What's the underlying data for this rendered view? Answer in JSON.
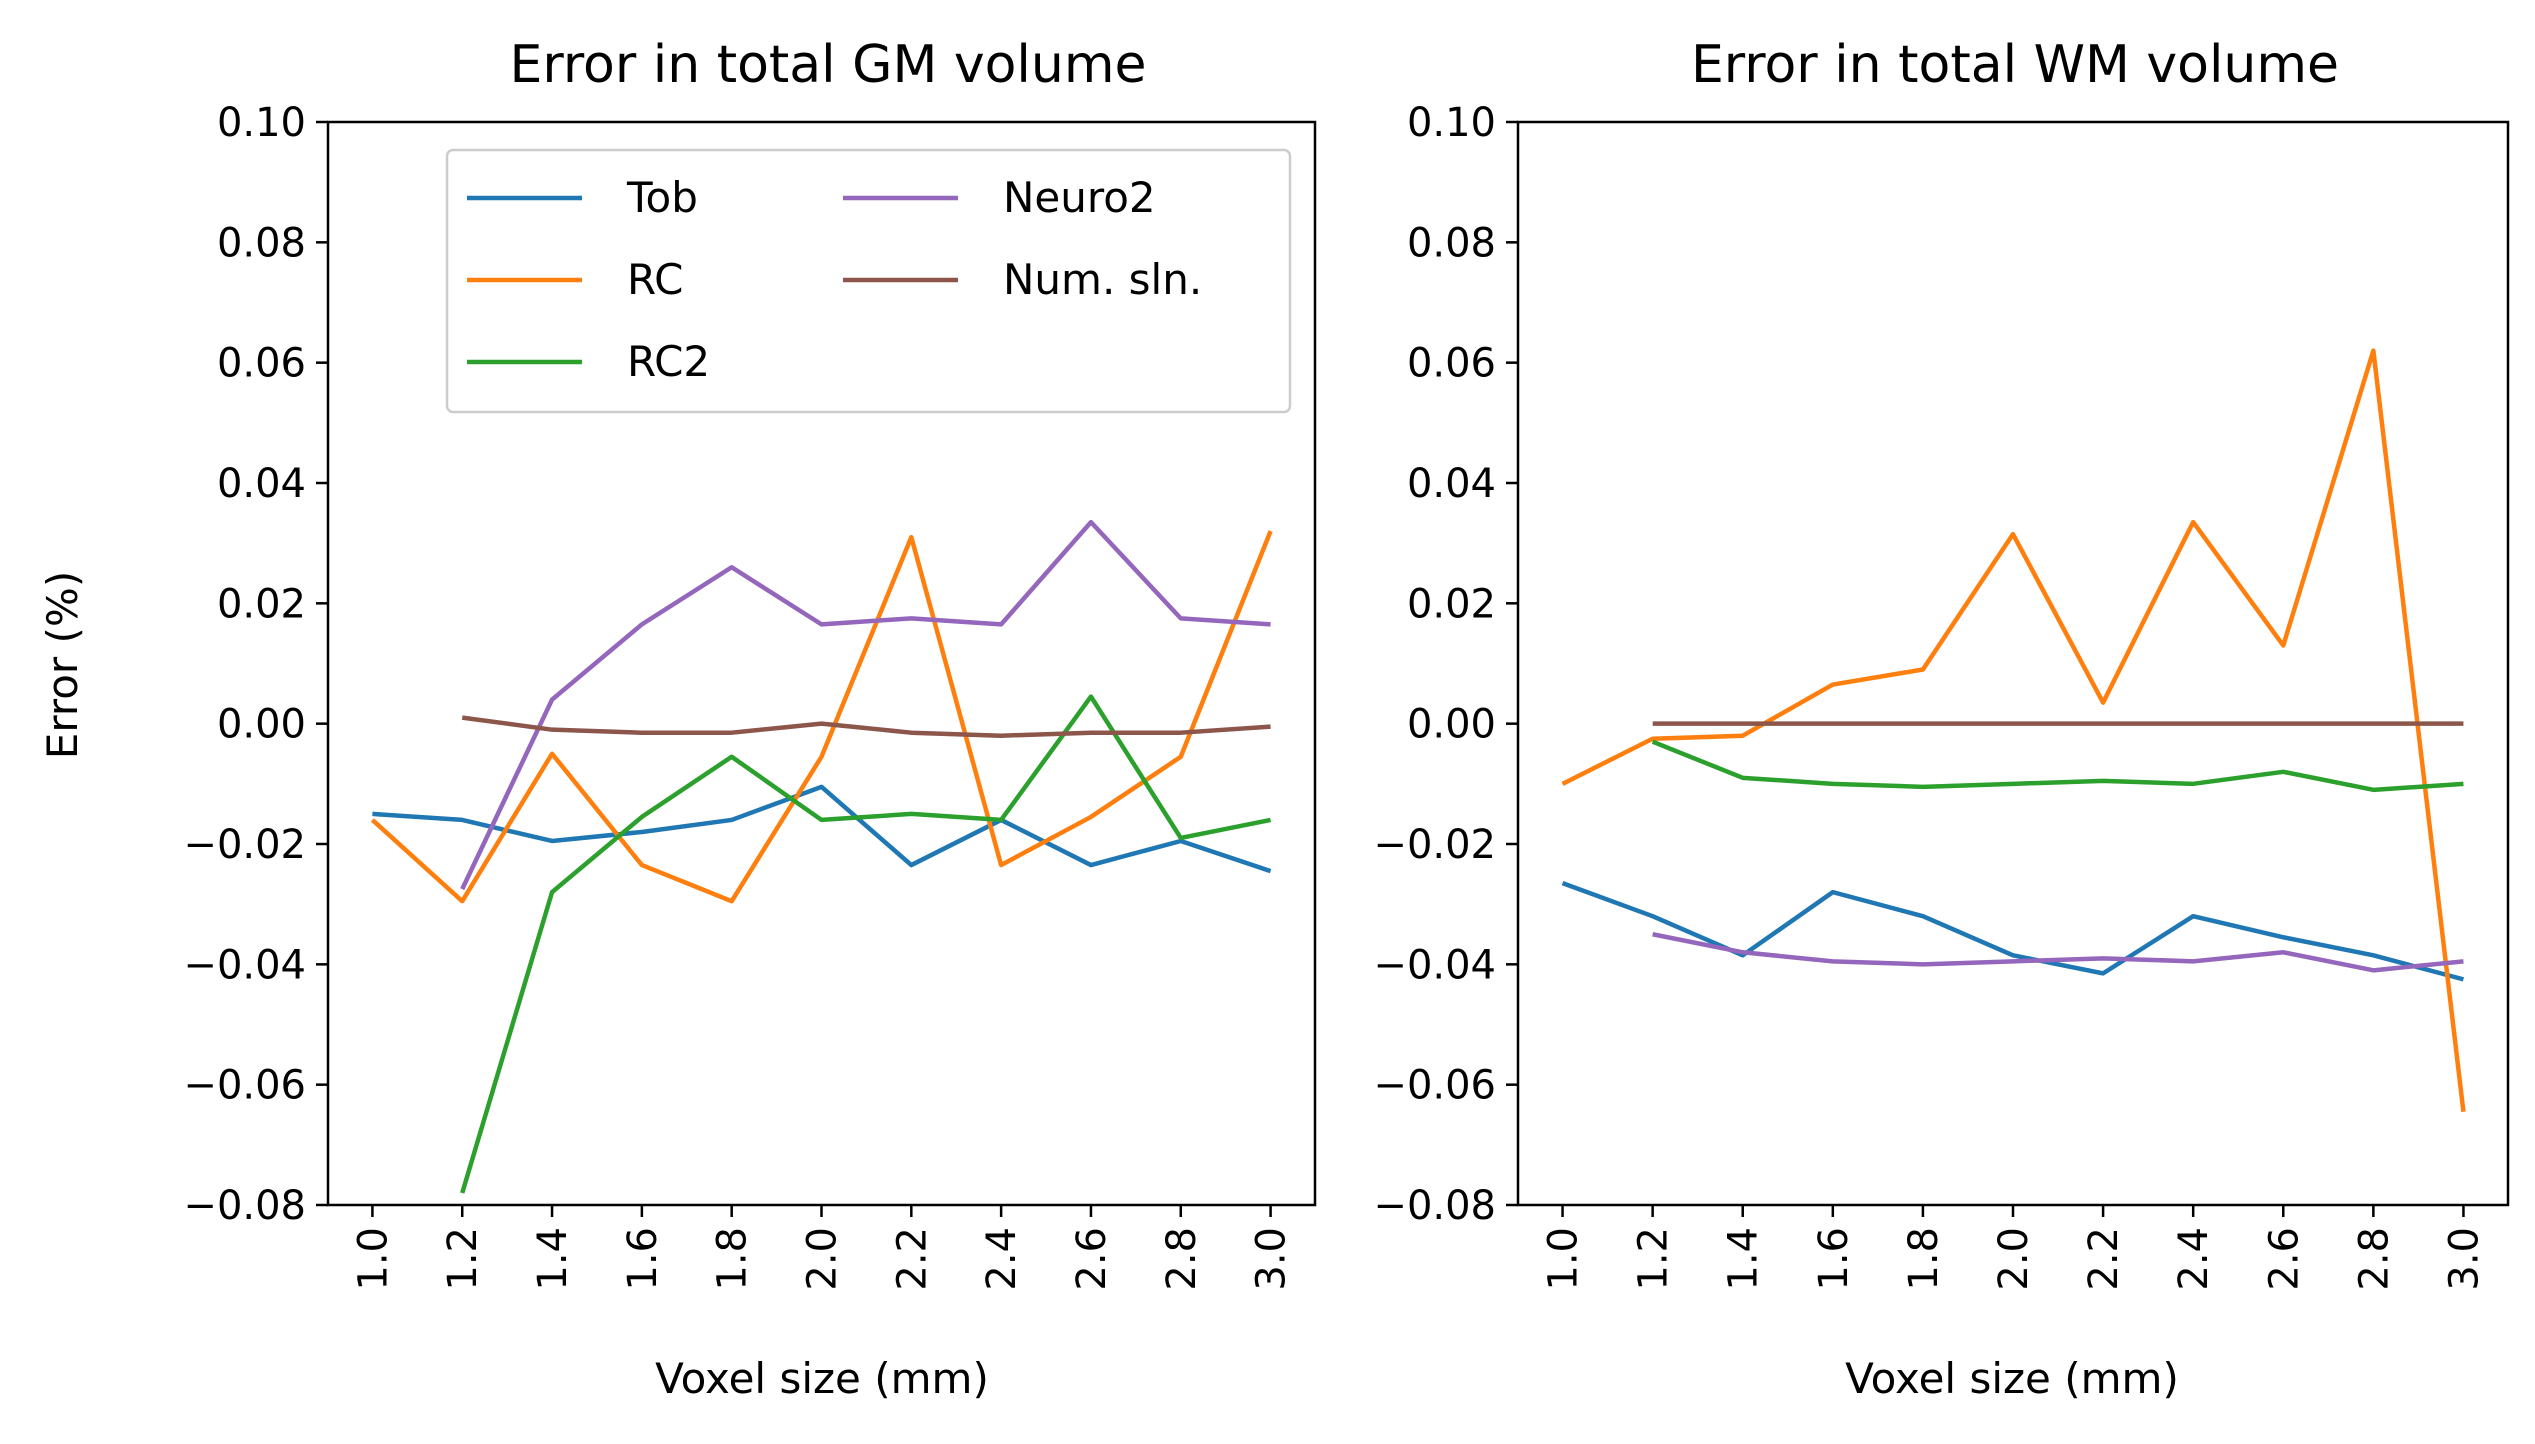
{
  "colors": {
    "Tob": "#1f77b4",
    "RC": "#ff7f0e",
    "RC2": "#2ca02c",
    "Neuro2": "#9467bd",
    "Num. sln.": "#8c564b"
  },
  "chart_data": [
    {
      "type": "line",
      "title": "Error in total GM volume",
      "xlabel": "Voxel size (mm)",
      "ylabel": "Error (%)",
      "ylim": [
        -0.08,
        0.1
      ],
      "yticks": [
        "0.10",
        "0.08",
        "0.06",
        "0.04",
        "0.02",
        "0.00",
        "−0.02",
        "−0.04",
        "−0.06",
        "−0.08"
      ],
      "x": [
        "1.0",
        "1.2",
        "1.4",
        "1.6",
        "1.8",
        "2.0",
        "2.2",
        "2.4",
        "2.6",
        "2.8",
        "3.0"
      ],
      "legend": {
        "placement": "top-right",
        "columns": 2
      },
      "grid": false,
      "series": [
        {
          "name": "Tob",
          "values": [
            -0.015,
            -0.016,
            -0.0195,
            -0.018,
            -0.016,
            -0.0105,
            -0.0235,
            -0.016,
            -0.0235,
            -0.0195,
            -0.0245
          ]
        },
        {
          "name": "RC",
          "values": [
            -0.016,
            -0.0295,
            -0.005,
            -0.0235,
            -0.0295,
            -0.0055,
            0.031,
            -0.0235,
            -0.0155,
            -0.0055,
            0.032
          ]
        },
        {
          "name": "RC2",
          "values": [
            null,
            -0.078,
            -0.028,
            -0.0155,
            -0.0055,
            -0.016,
            -0.015,
            -0.016,
            0.0045,
            -0.019,
            -0.016
          ]
        },
        {
          "name": "Neuro2",
          "values": [
            null,
            -0.0275,
            0.004,
            0.0165,
            0.026,
            0.0165,
            0.0175,
            0.0165,
            0.0335,
            0.0175,
            0.0165
          ]
        },
        {
          "name": "Num. sln.",
          "values": [
            null,
            0.001,
            -0.001,
            -0.0015,
            -0.0015,
            0.0,
            -0.0015,
            -0.002,
            -0.0015,
            -0.0015,
            -0.0005
          ]
        }
      ]
    },
    {
      "type": "line",
      "title": "Error in total WM volume",
      "xlabel": "Voxel size (mm)",
      "ylabel": "",
      "ylim": [
        -0.08,
        0.1
      ],
      "yticks": [
        "0.10",
        "0.08",
        "0.06",
        "0.04",
        "0.02",
        "0.00",
        "−0.02",
        "−0.04",
        "−0.06",
        "−0.08"
      ],
      "x": [
        "1.0",
        "1.2",
        "1.4",
        "1.6",
        "1.8",
        "2.0",
        "2.2",
        "2.4",
        "2.6",
        "2.8",
        "3.0"
      ],
      "legend": null,
      "grid": false,
      "series": [
        {
          "name": "Tob",
          "values": [
            -0.0265,
            -0.032,
            -0.0385,
            -0.028,
            -0.032,
            -0.0385,
            -0.0415,
            -0.032,
            -0.0355,
            -0.0385,
            -0.0425
          ]
        },
        {
          "name": "RC",
          "values": [
            -0.01,
            -0.0025,
            -0.002,
            0.0065,
            0.009,
            0.0315,
            0.0035,
            0.0335,
            0.013,
            0.062,
            -0.0645
          ]
        },
        {
          "name": "RC2",
          "values": [
            null,
            -0.003,
            -0.009,
            -0.01,
            -0.0105,
            -0.01,
            -0.0095,
            -0.01,
            -0.008,
            -0.011,
            -0.01
          ]
        },
        {
          "name": "Neuro2",
          "values": [
            null,
            -0.035,
            -0.038,
            -0.0395,
            -0.04,
            -0.0395,
            -0.039,
            -0.0395,
            -0.038,
            -0.041,
            -0.0395
          ]
        },
        {
          "name": "Num. sln.",
          "values": [
            null,
            0.0,
            0.0,
            0.0,
            0.0,
            0.0,
            0.0,
            0.0,
            0.0,
            0.0,
            0.0
          ]
        }
      ]
    }
  ]
}
